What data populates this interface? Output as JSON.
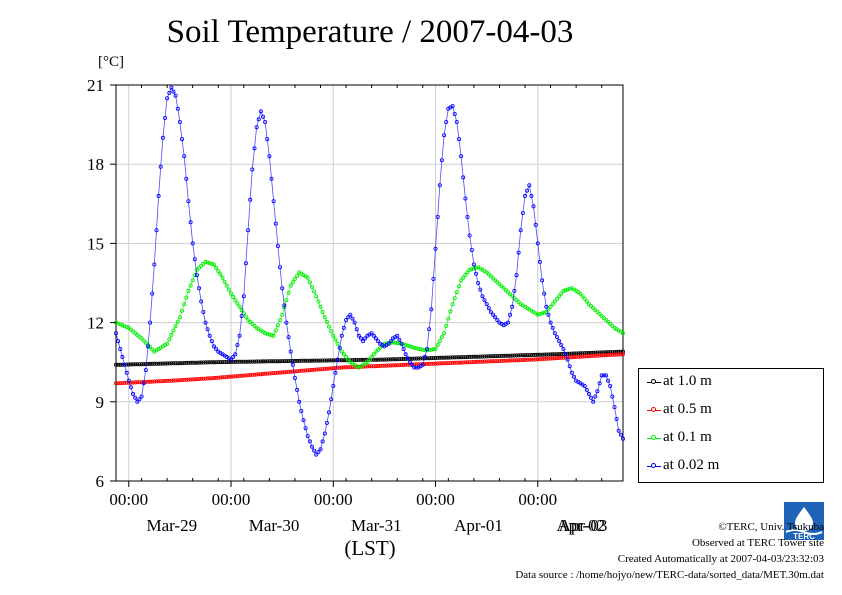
{
  "title": "Soil Temperature / 2007-04-03",
  "unit": "[°C]",
  "xlabel": "(LST)",
  "legend": {
    "items": [
      {
        "label": "at 1.0 m",
        "color": "#000000"
      },
      {
        "label": "at 0.5 m",
        "color": "#ff0000"
      },
      {
        "label": "at 0.1 m",
        "color": "#00ee00"
      },
      {
        "label": "at 0.02 m",
        "color": "#0000ff"
      }
    ]
  },
  "footer": {
    "copyright": "©TERC, Univ. Tsukuba",
    "observed": "Observed at TERC Tower site",
    "created": "Created Automatically at 2007-04-03/23:32:03",
    "source": "Data source : /home/hojyo/new/TERC-data/sorted_data/MET.30m.dat"
  },
  "logo": {
    "text": "TERC"
  },
  "chart_data": {
    "type": "line",
    "title": "Soil Temperature / 2007-04-03",
    "ylabel": "[°C]",
    "xlabel": "(LST)",
    "ylim": [
      6,
      21
    ],
    "xlim": [
      -3.0,
      116.0
    ],
    "x_unit": "hours since Mar-29 00:00",
    "yticks": [
      6,
      9,
      12,
      15,
      18,
      21
    ],
    "xticks": [
      {
        "x": 0,
        "time": "00:00",
        "date": "Mar-29"
      },
      {
        "x": 24,
        "time": "00:00",
        "date": "Mar-30"
      },
      {
        "x": 48,
        "time": "00:00",
        "date": "Mar-31"
      },
      {
        "x": 72,
        "time": "00:00",
        "date": "Apr-01"
      },
      {
        "x": 96,
        "time": "00:00",
        "date": "Apr-02"
      },
      {
        "x": 120,
        "time": "",
        "date": "Apr-03"
      }
    ],
    "grid": true,
    "legend_position": "right-bottom",
    "series": [
      {
        "name": "at 1.0 m",
        "color": "#000000",
        "x": [
          -3,
          20,
          40,
          60,
          80,
          100,
          116
        ],
        "y": [
          10.4,
          10.5,
          10.55,
          10.6,
          10.7,
          10.8,
          10.9
        ]
      },
      {
        "name": "at 0.5 m",
        "color": "#ff0000",
        "x": [
          -3,
          10,
          20,
          35,
          50,
          65,
          80,
          95,
          110,
          116
        ],
        "y": [
          9.7,
          9.8,
          9.9,
          10.1,
          10.3,
          10.4,
          10.5,
          10.6,
          10.75,
          10.8
        ]
      },
      {
        "name": "at 0.1 m",
        "color": "#00ee00",
        "x": [
          -3,
          0,
          3,
          6,
          9,
          12,
          14,
          16,
          18,
          20,
          22,
          24,
          26,
          28,
          30,
          32,
          34,
          36,
          38,
          40,
          42,
          44,
          46,
          48,
          50,
          52,
          54,
          56,
          58,
          60,
          62,
          64,
          66,
          68,
          70,
          72,
          74,
          76,
          78,
          80,
          82,
          84,
          86,
          88,
          90,
          92,
          94,
          96,
          98,
          100,
          102,
          104,
          106,
          108,
          110,
          112,
          114,
          116
        ],
        "y": [
          12.0,
          11.8,
          11.4,
          10.9,
          11.2,
          12.2,
          13.2,
          14.0,
          14.3,
          14.2,
          13.7,
          13.1,
          12.6,
          12.1,
          11.8,
          11.6,
          11.5,
          12.3,
          13.4,
          13.9,
          13.7,
          13.0,
          12.2,
          11.5,
          10.9,
          10.5,
          10.3,
          10.5,
          10.9,
          11.2,
          11.25,
          11.2,
          11.1,
          11.0,
          10.95,
          11.0,
          11.6,
          12.7,
          13.6,
          14.0,
          14.1,
          13.9,
          13.6,
          13.3,
          13.0,
          12.7,
          12.5,
          12.3,
          12.4,
          12.8,
          13.2,
          13.3,
          13.1,
          12.7,
          12.4,
          12.1,
          11.8,
          11.6
        ]
      },
      {
        "name": "at 0.02 m",
        "color": "#0000ff",
        "x": [
          -3,
          -2,
          -1,
          0,
          1,
          2,
          3,
          4,
          5,
          6,
          7,
          8,
          9,
          10,
          11,
          12,
          13,
          14,
          15,
          16,
          17,
          18,
          19,
          20,
          21,
          22,
          23,
          24,
          25,
          26,
          27,
          28,
          29,
          30,
          31,
          32,
          33,
          34,
          35,
          36,
          37,
          38,
          39,
          40,
          41,
          42,
          43,
          44,
          45,
          46,
          47,
          48,
          49,
          50,
          51,
          52,
          53,
          54,
          55,
          56,
          57,
          58,
          59,
          60,
          61,
          62,
          63,
          64,
          65,
          66,
          67,
          68,
          69,
          70,
          71,
          72,
          73,
          74,
          75,
          76,
          77,
          78,
          79,
          80,
          81,
          82,
          83,
          84,
          85,
          86,
          87,
          88,
          89,
          90,
          91,
          92,
          93,
          94,
          95,
          96,
          97,
          98,
          99,
          100,
          101,
          102,
          103,
          104,
          105,
          106,
          107,
          108,
          109,
          110,
          111,
          112,
          113,
          114,
          115,
          116
        ],
        "y": [
          11.6,
          11.0,
          10.4,
          9.8,
          9.3,
          9.0,
          9.2,
          10.2,
          12.0,
          14.2,
          16.8,
          19.0,
          20.5,
          20.9,
          20.6,
          19.6,
          18.3,
          16.6,
          15.0,
          13.8,
          12.8,
          12.0,
          11.5,
          11.1,
          10.9,
          10.8,
          10.7,
          10.6,
          10.8,
          11.5,
          13.0,
          15.5,
          17.8,
          19.4,
          20.0,
          19.6,
          18.3,
          16.6,
          14.9,
          13.3,
          12.0,
          10.9,
          9.9,
          9.0,
          8.3,
          7.7,
          7.3,
          7.0,
          7.2,
          7.8,
          8.6,
          9.6,
          10.6,
          11.5,
          12.1,
          12.3,
          12.0,
          11.5,
          11.3,
          11.5,
          11.6,
          11.4,
          11.2,
          11.1,
          11.2,
          11.4,
          11.5,
          11.2,
          10.8,
          10.5,
          10.3,
          10.3,
          10.4,
          11.0,
          12.5,
          14.8,
          17.2,
          19.1,
          20.1,
          20.2,
          19.6,
          18.3,
          16.7,
          15.3,
          14.2,
          13.5,
          13.0,
          12.7,
          12.4,
          12.2,
          12.0,
          11.9,
          12.0,
          12.6,
          13.8,
          15.5,
          16.8,
          17.2,
          16.4,
          15.0,
          13.6,
          12.6,
          12.0,
          11.6,
          11.3,
          11.0,
          10.6,
          10.1,
          9.8,
          9.7,
          9.6,
          9.3,
          9.0,
          9.4,
          10.0,
          10.0,
          9.6,
          8.8,
          7.9,
          7.6
        ]
      }
    ]
  }
}
